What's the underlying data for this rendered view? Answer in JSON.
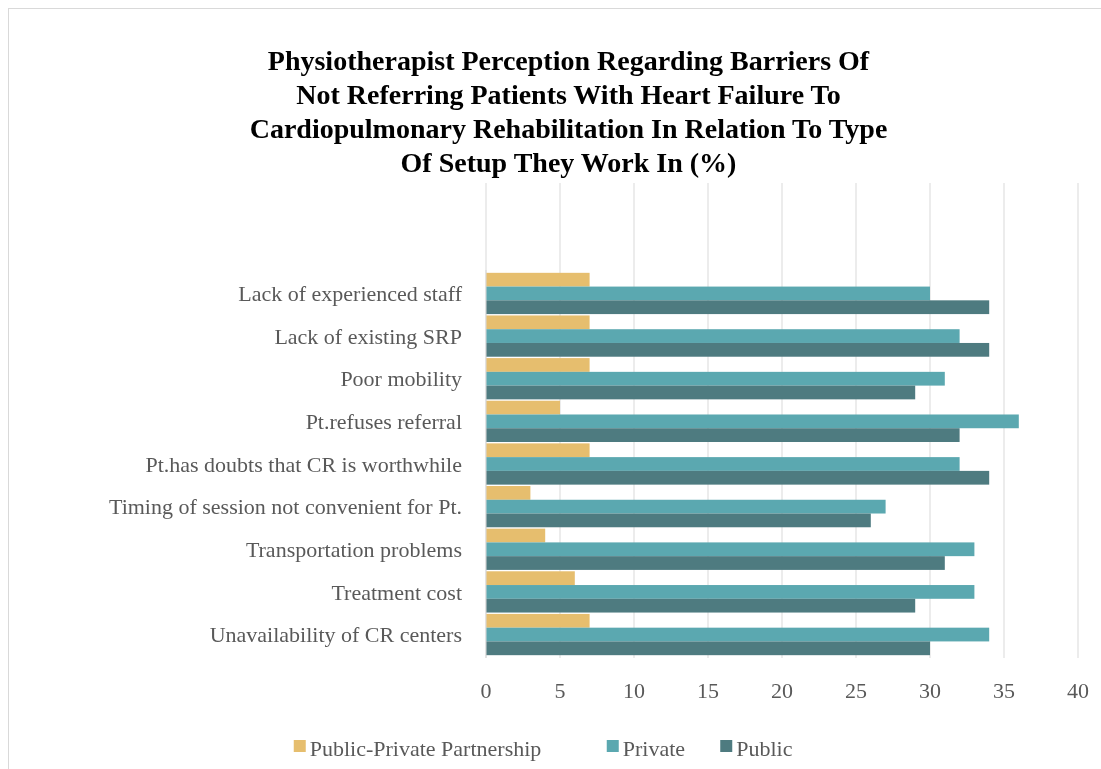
{
  "chart_data": {
    "type": "bar",
    "orientation": "horizontal",
    "title": "Physiotherapist Perception Regarding Barriers Of Not Referring Patients With Heart Failure To Cardiopulmonary Rehabilitation In Relation To Type Of Setup They Work In (%)",
    "categories": [
      "Lack of experienced staff",
      "Lack of existing SRP",
      "Poor mobility",
      "Pt.refuses referral",
      "Pt.has doubts that CR is worthwhile",
      "Timing of session not convenient for Pt.",
      "Transportation problems",
      "Treatment cost",
      "Unavailability of CR centers"
    ],
    "series": [
      {
        "name": "Public-Private Partnership",
        "color": "#e6be6e",
        "values": [
          7,
          7,
          7,
          5,
          7,
          3,
          4,
          6,
          7
        ]
      },
      {
        "name": "Private",
        "color": "#5ba8b0",
        "values": [
          30,
          32,
          31,
          36,
          32,
          27,
          33,
          33,
          34
        ]
      },
      {
        "name": "Public",
        "color": "#4e7b80",
        "values": [
          34,
          34,
          29,
          32,
          34,
          26,
          31,
          29,
          30
        ]
      }
    ],
    "xlim": [
      0,
      40
    ],
    "xticks": [
      0,
      5,
      10,
      15,
      20,
      25,
      30,
      35,
      40
    ],
    "grid": "x",
    "legend": "bottom"
  }
}
